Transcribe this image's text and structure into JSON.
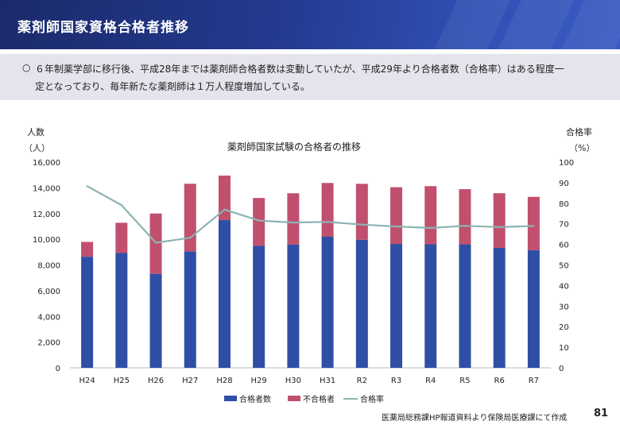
{
  "header": {
    "title": "薬剤師国家資格合格者推移"
  },
  "summary": {
    "bullet": "○",
    "line1": "６年制薬学部に移行後、平成28年までは薬剤師合格者数は変動していたが、平成29年より合格者数（合格率）はある程度一",
    "line2": "定となっており、毎年新たな薬剤師は１万人程度増加している。"
  },
  "colors": {
    "passed": "#2f4fa6",
    "failed": "#c0506e",
    "rate": "#8db3b3",
    "header": "#1f3a8f"
  },
  "footer": {
    "source": "医薬局総務課HP報道資料より保険局医療課にて作成",
    "page": "81"
  },
  "chart_data": {
    "type": "bar",
    "title": "薬剤師国家試験の合格者の推移",
    "y_left": {
      "label_line1": "人数",
      "label_line2": "（人）",
      "min": 0,
      "max": 16000,
      "ticks": [
        "0",
        "2,000",
        "4,000",
        "6,000",
        "8,000",
        "10,000",
        "12,000",
        "14,000",
        "16,000"
      ]
    },
    "y_right": {
      "label_line1": "合格率",
      "label_line2": "（%）",
      "min": 0,
      "max": 100,
      "ticks": [
        "0",
        "10",
        "20",
        "30",
        "40",
        "50",
        "60",
        "70",
        "80",
        "90",
        "100"
      ]
    },
    "categories": [
      "H24",
      "H25",
      "H26",
      "H27",
      "H28",
      "H29",
      "H30",
      "H31",
      "R2",
      "R3",
      "R4",
      "R5",
      "R6",
      "R7"
    ],
    "series": [
      {
        "name": "合格者数",
        "kind": "bar",
        "values": [
          8641,
          8929,
          7312,
          9044,
          11488,
          9479,
          9584,
          10194,
          9958,
          9634,
          9607,
          9602,
          9330,
          9155
        ]
      },
      {
        "name": "不合格者",
        "kind": "bar",
        "values": [
          1150,
          2350,
          4690,
          5270,
          3460,
          3730,
          3990,
          4180,
          4350,
          4410,
          4520,
          4290,
          4250,
          4140
        ]
      },
      {
        "name": "合格率",
        "kind": "line",
        "axis": "right",
        "values": [
          88.3,
          79.1,
          60.8,
          63.2,
          76.9,
          71.6,
          70.6,
          70.9,
          69.6,
          68.7,
          68.0,
          69.0,
          68.4,
          68.9
        ]
      }
    ],
    "grid": false,
    "legend_position": "bottom"
  }
}
